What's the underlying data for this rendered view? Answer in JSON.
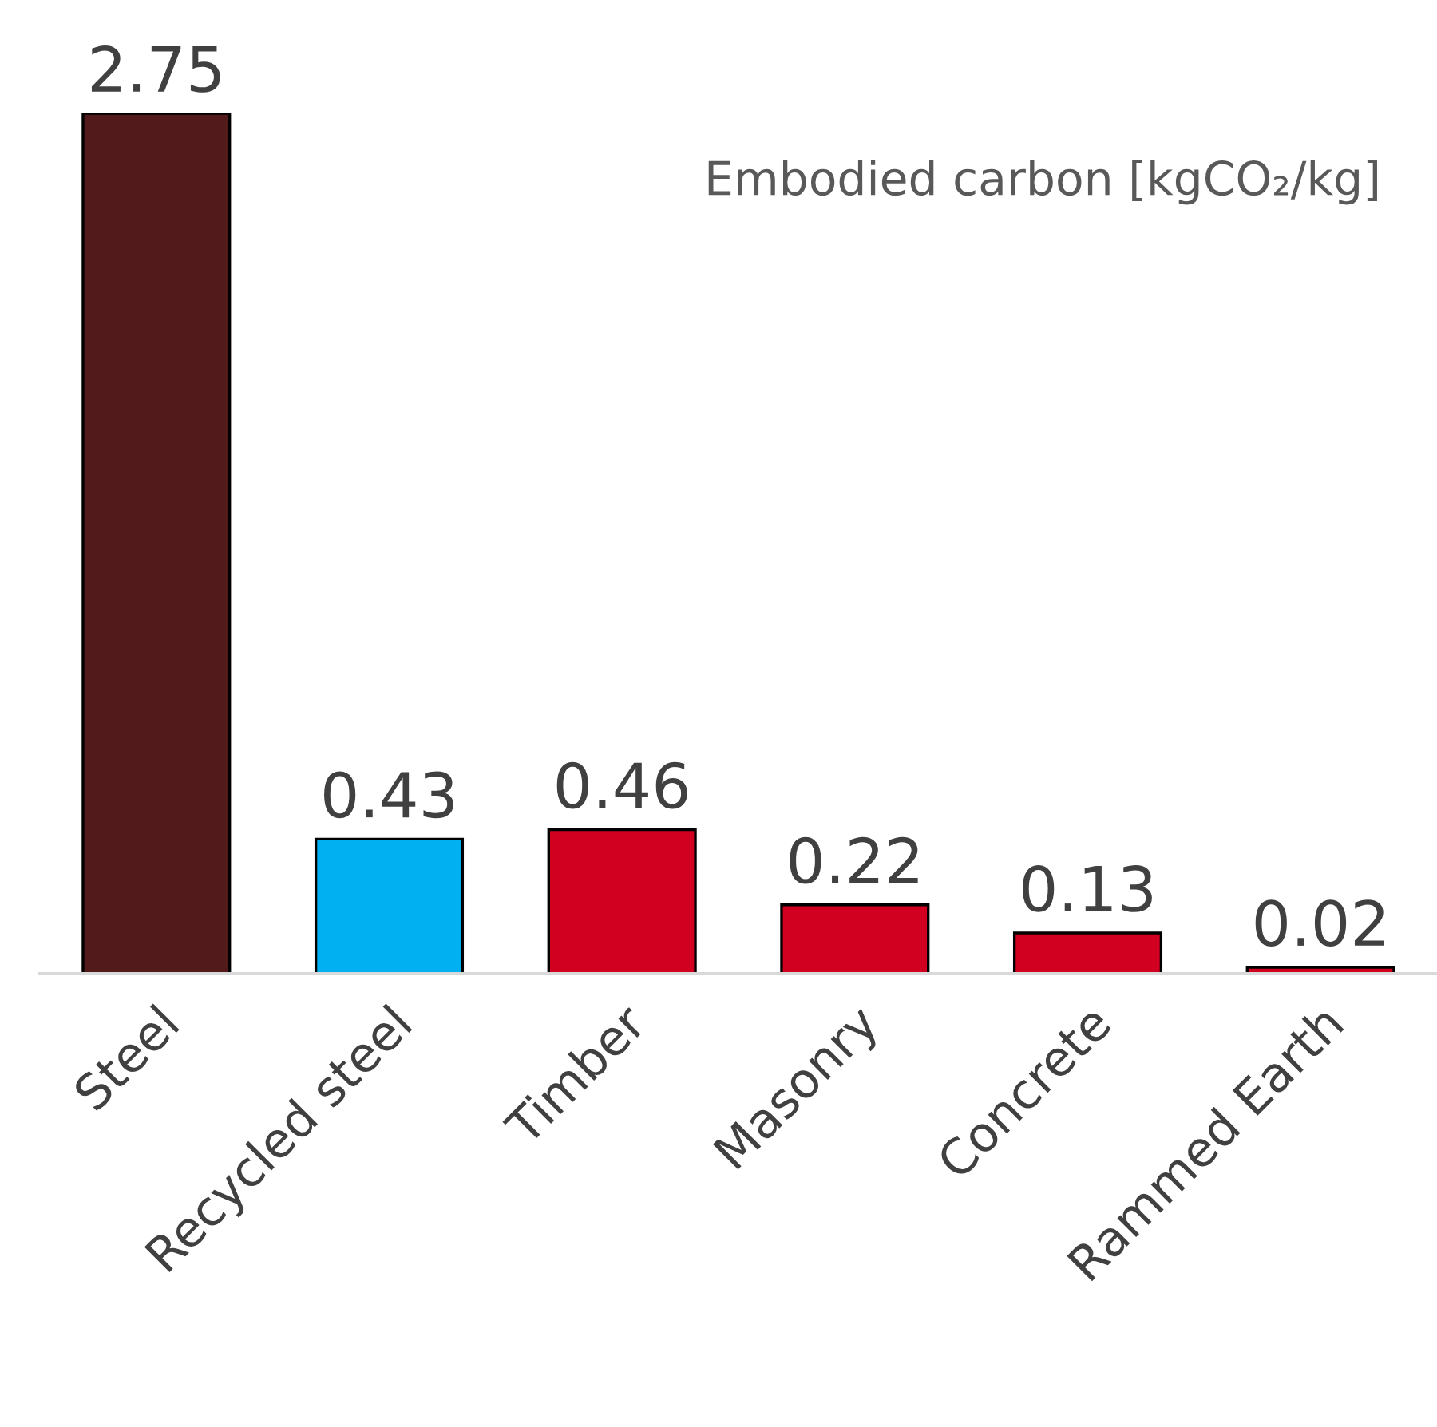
{
  "chart_data": {
    "type": "bar",
    "title": "Embodied carbon [kgCO₂/kg]",
    "categories": [
      "Steel",
      "Recycled steel",
      "Timber",
      "Masonry",
      "Concrete",
      "Rammed Earth"
    ],
    "values": [
      2.75,
      0.43,
      0.46,
      0.22,
      0.13,
      0.02
    ],
    "colors": [
      "#521a1a",
      "#00b0f0",
      "#d20020",
      "#d20020",
      "#d20020",
      "#d20020"
    ],
    "data_labels": true,
    "grid": false,
    "legend": false,
    "tick_labels": "x"
  }
}
